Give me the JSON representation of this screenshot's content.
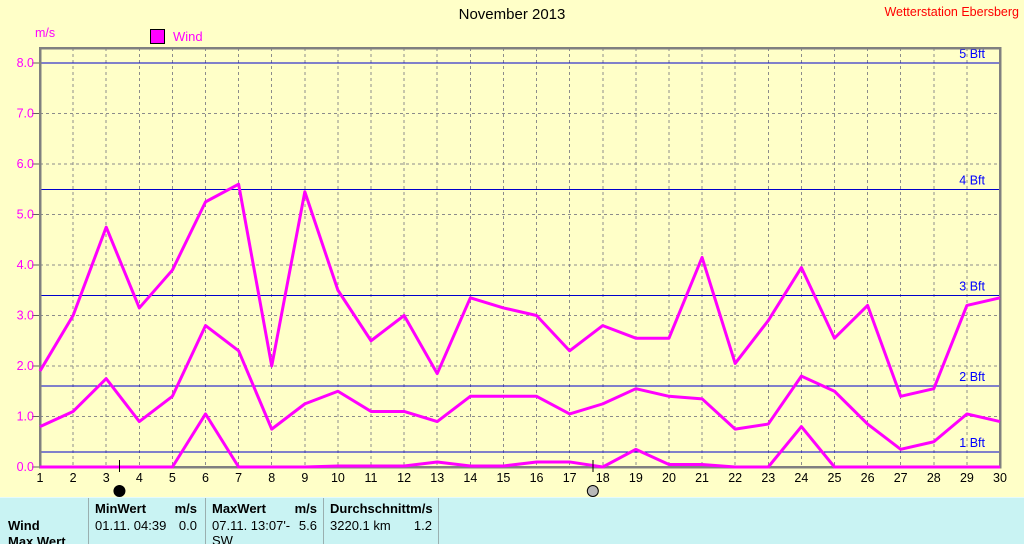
{
  "header": {
    "title": "November 2013",
    "station": "Wetterstation Ebersberg"
  },
  "legend": {
    "unit_label": "m/s",
    "series_label": "Wind"
  },
  "chart_data": {
    "type": "line",
    "title": "November 2013",
    "ylabel": "m/s",
    "xlabel": "",
    "ylim": [
      0,
      8.3
    ],
    "ytick_step": 1.0,
    "grid": "gray dashed, vertical per day and horizontal per 1.0 m/s",
    "legend_position": "top-left",
    "x": [
      1,
      2,
      3,
      4,
      5,
      6,
      7,
      8,
      9,
      10,
      11,
      12,
      13,
      14,
      15,
      16,
      17,
      18,
      19,
      20,
      21,
      22,
      23,
      24,
      25,
      26,
      27,
      28,
      29,
      30
    ],
    "series": [
      {
        "name": "wind-daily-min",
        "values": [
          0,
          0,
          0,
          0,
          0,
          1.05,
          0,
          0,
          0,
          0.02,
          0.02,
          0.02,
          0.1,
          0.02,
          0.02,
          0.1,
          0.1,
          0,
          0.35,
          0.05,
          0.05,
          0,
          0,
          0.8,
          0,
          0,
          0,
          0,
          0,
          0
        ]
      },
      {
        "name": "wind-daily-avg",
        "values": [
          0.8,
          1.1,
          1.75,
          0.9,
          1.4,
          2.8,
          2.3,
          0.75,
          1.25,
          1.5,
          1.1,
          1.1,
          0.9,
          1.4,
          1.4,
          1.4,
          1.05,
          1.25,
          1.55,
          1.4,
          1.35,
          0.75,
          0.85,
          1.8,
          1.5,
          0.85,
          0.35,
          0.5,
          1.05,
          0.9
        ]
      },
      {
        "name": "wind-daily-max",
        "values": [
          1.9,
          3.0,
          4.75,
          3.15,
          3.9,
          5.25,
          5.6,
          2.0,
          5.45,
          3.5,
          2.5,
          3.0,
          1.85,
          3.35,
          3.15,
          3.0,
          2.3,
          2.8,
          2.55,
          2.55,
          4.15,
          2.05,
          2.9,
          3.95,
          2.55,
          3.2,
          1.4,
          1.55,
          3.2,
          3.35
        ]
      }
    ],
    "bft_lines": [
      {
        "label": "1 Bft",
        "value": 0.3
      },
      {
        "label": "2 Bft",
        "value": 1.6
      },
      {
        "label": "3 Bft",
        "value": 3.4
      },
      {
        "label": "4 Bft",
        "value": 5.5
      },
      {
        "label": "5 Bft",
        "value": 8.0
      }
    ],
    "moon_markers": [
      {
        "type": "new-moon",
        "day": 3.4
      },
      {
        "type": "full-moon",
        "day": 17.7
      }
    ],
    "colors": {
      "background": "#FFFFC8",
      "series_line": "#FF00FF",
      "bft_line": "#0000CC",
      "bft_label": "#0000FF",
      "grid": "#8C8C8C",
      "frame": "#808080",
      "y_labels": "#FF00FF",
      "x_labels": "#000000"
    }
  },
  "summary_table": {
    "row_label": "Wind",
    "clipped_next_row_label": "Max.Wert",
    "columns": [
      {
        "header": "MinWert",
        "unit": "m/s",
        "value": "01.11.  04:39",
        "number": "0.0"
      },
      {
        "header": "MaxWert",
        "unit": "m/s",
        "value": "07.11.  13:07'-SW",
        "number": "5.6"
      },
      {
        "header": "Durchschnitt",
        "unit": "m/s",
        "value": "3220.1 km",
        "number": "1.2"
      }
    ]
  }
}
